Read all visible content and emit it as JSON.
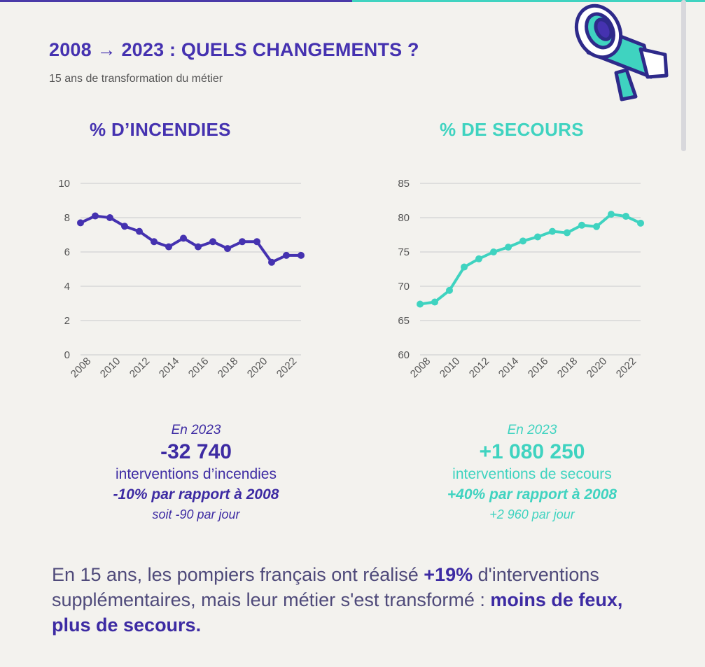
{
  "header": {
    "title": "2008 → 2023 : QUELS CHANGEMENTS ?",
    "subtitle": "15 ans de transformation du métier",
    "icon": "megaphone-icon"
  },
  "chart_data": [
    {
      "type": "line",
      "title": "% D’INCENDIES",
      "color": "#4532b0",
      "x": [
        2008,
        2009,
        2010,
        2011,
        2012,
        2013,
        2014,
        2015,
        2016,
        2017,
        2018,
        2019,
        2020,
        2021,
        2022,
        2023
      ],
      "values": [
        7.7,
        8.1,
        8.0,
        7.5,
        7.2,
        6.6,
        6.3,
        6.8,
        6.3,
        6.6,
        6.2,
        6.6,
        6.6,
        5.4,
        5.8,
        5.8
      ],
      "ylim": [
        0,
        10
      ],
      "yticks": [
        0,
        2,
        4,
        6,
        8,
        10
      ],
      "xticks": [
        2008,
        2010,
        2012,
        2014,
        2016,
        2018,
        2020,
        2022
      ],
      "grid": true
    },
    {
      "type": "line",
      "title": "% DE SECOURS",
      "color": "#3fd3c0",
      "x": [
        2008,
        2009,
        2010,
        2011,
        2012,
        2013,
        2014,
        2015,
        2016,
        2017,
        2018,
        2019,
        2020,
        2021,
        2022,
        2023
      ],
      "values": [
        67.4,
        67.7,
        69.4,
        72.8,
        74.0,
        75.0,
        75.7,
        76.6,
        77.2,
        78.0,
        77.8,
        78.9,
        78.7,
        80.5,
        80.2,
        79.2
      ],
      "ylim": [
        60,
        85
      ],
      "yticks": [
        60,
        65,
        70,
        75,
        80,
        85
      ],
      "xticks": [
        2008,
        2010,
        2012,
        2014,
        2016,
        2018,
        2020,
        2022
      ],
      "grid": true
    }
  ],
  "stats": {
    "left": {
      "year": "En 2023",
      "value": "-32 740",
      "desc": "interventions d’incendies",
      "pct": "-10% par rapport à 2008",
      "perday": "soit -90 par jour"
    },
    "right": {
      "year": "En 2023",
      "value": "+1 080 250",
      "desc": "interventions de secours",
      "pct": "+40% par rapport à 2008",
      "perday": "+2 960 par jour"
    }
  },
  "conclusion": {
    "part1": "En 15 ans, les pompiers français ont réalisé ",
    "bold1": "+19%",
    "part2": " d'interventions supplémentaires, mais leur métier s'est transformé : ",
    "bold2": "moins de feux, plus de secours."
  },
  "colors": {
    "purple": "#4532b0",
    "teal": "#3fd3c0",
    "background": "#f3f2ee"
  }
}
